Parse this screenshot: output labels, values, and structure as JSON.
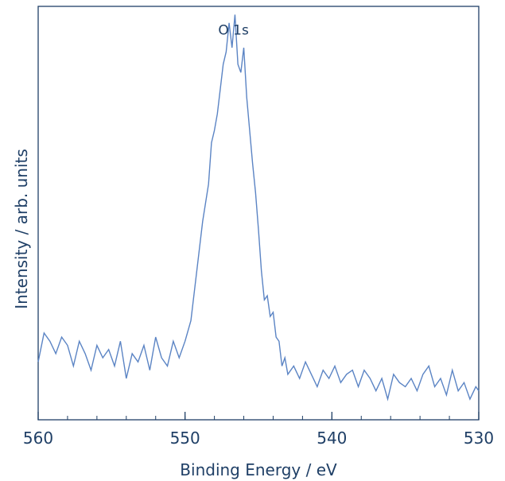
{
  "colors": {
    "line": "#5b84c4",
    "axis": "#1f3f66",
    "text": "#1f3f66",
    "background": "#ffffff"
  },
  "chart_data": {
    "type": "line",
    "xlabel": "Binding Energy / eV",
    "ylabel": "Intensity / arb. units",
    "xlim": [
      560,
      530
    ],
    "x_reversed": true,
    "ylim": [
      0,
      1.0
    ],
    "y_ticks_shown": false,
    "x_ticks": [
      560,
      550,
      540,
      530
    ],
    "x_tick_labels": [
      "560",
      "550",
      "540",
      "530"
    ],
    "x_minor_tick_step": 2,
    "grid": false,
    "legend": "none",
    "annotations": [
      {
        "text": "O 1s",
        "x": 546.7,
        "y": 0.92
      }
    ],
    "series": [
      {
        "x": [
          560.0,
          559.6,
          559.2,
          558.8,
          558.4,
          558.0,
          557.6,
          557.2,
          556.8,
          556.4,
          556.0,
          555.6,
          555.2,
          554.8,
          554.4,
          554.0,
          553.6,
          553.2,
          552.8,
          552.4,
          552.0,
          551.6,
          551.2,
          550.8,
          550.4,
          550.0,
          549.6,
          549.2,
          548.8,
          548.4,
          548.2,
          548.0,
          547.8,
          547.6,
          547.4,
          547.2,
          547.0,
          546.8,
          546.6,
          546.4,
          546.2,
          546.0,
          545.8,
          545.6,
          545.4,
          545.2,
          545.0,
          544.8,
          544.6,
          544.4,
          544.2,
          544.0,
          543.8,
          543.6,
          543.4,
          543.2,
          543.0,
          542.6,
          542.2,
          541.8,
          541.4,
          541.0,
          540.6,
          540.2,
          539.8,
          539.4,
          539.0,
          538.6,
          538.2,
          537.8,
          537.4,
          537.0,
          536.6,
          536.2,
          535.8,
          535.4,
          535.0,
          534.6,
          534.2,
          533.8,
          533.4,
          533.0,
          532.6,
          532.2,
          531.8,
          531.4,
          531.0,
          530.6,
          530.2,
          530.0
        ],
        "y": [
          0.14,
          0.21,
          0.19,
          0.16,
          0.2,
          0.18,
          0.13,
          0.19,
          0.16,
          0.12,
          0.18,
          0.15,
          0.17,
          0.13,
          0.19,
          0.1,
          0.16,
          0.14,
          0.18,
          0.12,
          0.2,
          0.15,
          0.13,
          0.19,
          0.15,
          0.19,
          0.24,
          0.36,
          0.48,
          0.57,
          0.67,
          0.7,
          0.74,
          0.8,
          0.86,
          0.89,
          0.96,
          0.9,
          0.98,
          0.86,
          0.84,
          0.9,
          0.78,
          0.7,
          0.62,
          0.55,
          0.46,
          0.36,
          0.29,
          0.3,
          0.25,
          0.26,
          0.2,
          0.19,
          0.13,
          0.15,
          0.11,
          0.13,
          0.1,
          0.14,
          0.11,
          0.08,
          0.12,
          0.1,
          0.13,
          0.09,
          0.11,
          0.12,
          0.08,
          0.12,
          0.1,
          0.07,
          0.1,
          0.05,
          0.11,
          0.09,
          0.08,
          0.1,
          0.07,
          0.11,
          0.13,
          0.08,
          0.1,
          0.06,
          0.12,
          0.07,
          0.09,
          0.05,
          0.08,
          0.07
        ]
      }
    ]
  }
}
